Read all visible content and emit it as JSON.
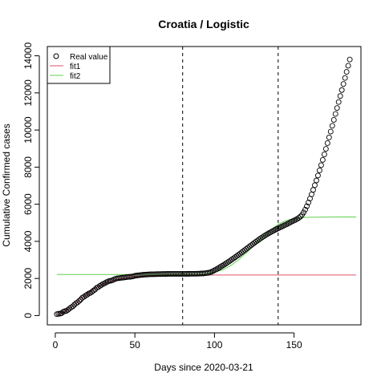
{
  "chart_data": {
    "type": "scatter",
    "title": "Croatia / Logistic",
    "xlabel": "Days since 2020-03-21",
    "ylabel": "Cumulative Confirmed cases",
    "xlim": [
      -5,
      192
    ],
    "ylim": [
      -500,
      14500
    ],
    "xticks": [
      0,
      50,
      100,
      150
    ],
    "yticks": [
      0,
      2000,
      4000,
      6000,
      8000,
      10000,
      12000,
      14000
    ],
    "xtick_labels": [
      "0",
      "50",
      "100",
      "150"
    ],
    "ytick_labels": [
      "0",
      "2000",
      "4000",
      "6000",
      "8000",
      "10000",
      "12000",
      "14000"
    ],
    "vlines": [
      80,
      140
    ],
    "legend": {
      "position": "top-left",
      "entries": [
        {
          "label": "Real value",
          "symbol": "circle",
          "color": "#000000"
        },
        {
          "label": "fit1",
          "symbol": "line",
          "color": "#DF536B"
        },
        {
          "label": "fit2",
          "symbol": "line",
          "color": "#61D04F"
        }
      ]
    },
    "series": [
      {
        "name": "Real value",
        "kind": "points",
        "color": "#000000",
        "x": [
          1,
          2,
          3,
          4,
          5,
          6,
          7,
          8,
          9,
          10,
          11,
          12,
          13,
          14,
          15,
          16,
          17,
          18,
          19,
          20,
          21,
          22,
          23,
          24,
          25,
          26,
          27,
          28,
          29,
          30,
          31,
          32,
          33,
          34,
          35,
          36,
          37,
          38,
          39,
          40,
          41,
          42,
          43,
          44,
          45,
          46,
          47,
          48,
          49,
          50,
          51,
          52,
          53,
          54,
          55,
          56,
          57,
          58,
          59,
          60,
          61,
          62,
          63,
          64,
          65,
          66,
          67,
          68,
          69,
          70,
          71,
          72,
          73,
          74,
          75,
          76,
          77,
          78,
          79,
          80,
          81,
          82,
          83,
          84,
          85,
          86,
          87,
          88,
          89,
          90,
          91,
          92,
          93,
          94,
          95,
          96,
          97,
          98,
          99,
          100,
          101,
          102,
          103,
          104,
          105,
          106,
          107,
          108,
          109,
          110,
          111,
          112,
          113,
          114,
          115,
          116,
          117,
          118,
          119,
          120,
          121,
          122,
          123,
          124,
          125,
          126,
          127,
          128,
          129,
          130,
          131,
          132,
          133,
          134,
          135,
          136,
          137,
          138,
          139,
          140,
          141,
          142,
          143,
          144,
          145,
          146,
          147,
          148,
          149,
          150,
          151,
          152,
          153,
          154,
          155,
          156,
          157,
          158,
          159,
          160,
          161,
          162,
          163,
          164,
          165,
          166,
          167,
          168,
          169,
          170,
          171,
          172,
          173,
          174,
          175,
          176,
          177,
          178,
          179,
          180,
          181,
          182,
          183,
          184,
          185
        ],
        "y": [
          76,
          95,
          105,
          128,
          206,
          235,
          254,
          315,
          382,
          442,
          495,
          586,
          657,
          713,
          790,
          867,
          963,
          1011,
          1079,
          1126,
          1182,
          1222,
          1282,
          1343,
          1407,
          1495,
          1534,
          1600,
          1650,
          1704,
          1741,
          1791,
          1832,
          1871,
          1881,
          1908,
          1950,
          1981,
          2009,
          2016,
          2030,
          2039,
          2047,
          2062,
          2076,
          2085,
          2088,
          2101,
          2119,
          2146,
          2158,
          2167,
          2176,
          2187,
          2196,
          2205,
          2209,
          2213,
          2221,
          2224,
          2226,
          2228,
          2232,
          2234,
          2237,
          2238,
          2240,
          2241,
          2243,
          2245,
          2246,
          2247,
          2247,
          2247,
          2247,
          2247,
          2247,
          2247,
          2247,
          2248,
          2249,
          2249,
          2250,
          2250,
          2251,
          2251,
          2252,
          2253,
          2256,
          2259,
          2263,
          2267,
          2272,
          2279,
          2289,
          2304,
          2324,
          2356,
          2395,
          2440,
          2487,
          2535,
          2585,
          2636,
          2688,
          2741,
          2796,
          2851,
          2908,
          2966,
          3026,
          3086,
          3147,
          3209,
          3271,
          3334,
          3398,
          3462,
          3527,
          3592,
          3657,
          3722,
          3787,
          3852,
          3916,
          3979,
          4041,
          4102,
          4161,
          4219,
          4275,
          4330,
          4383,
          4433,
          4481,
          4528,
          4573,
          4617,
          4660,
          4702,
          4743,
          4784,
          4825,
          4866,
          4907,
          4950,
          4994,
          5039,
          5082,
          5124,
          5166,
          5213,
          5266,
          5335,
          5431,
          5557,
          5712,
          5892,
          6092,
          6307,
          6534,
          6773,
          7023,
          7281,
          7548,
          7823,
          8105,
          8393,
          8687,
          8987,
          9292,
          9601,
          9913,
          10228,
          10546,
          10865,
          11186,
          11508,
          11831,
          12155,
          12480,
          12806,
          13134,
          13465,
          13800
        ]
      },
      {
        "name": "fit1",
        "kind": "line",
        "color": "#DF536B",
        "x": [
          1,
          5,
          10,
          15,
          20,
          25,
          30,
          35,
          40,
          45,
          50,
          55,
          60,
          65,
          70,
          75,
          80,
          90,
          100,
          120,
          140,
          160,
          180,
          189
        ],
        "y": [
          55,
          170,
          450,
          830,
          1190,
          1480,
          1700,
          1870,
          1980,
          2060,
          2110,
          2140,
          2160,
          2170,
          2175,
          2178,
          2180,
          2182,
          2183,
          2183,
          2183,
          2183,
          2183,
          2183
        ]
      },
      {
        "name": "fit2",
        "kind": "line",
        "color": "#61D04F",
        "x": [
          1,
          20,
          40,
          60,
          80,
          90,
          95,
          100,
          105,
          110,
          115,
          120,
          125,
          130,
          135,
          140,
          145,
          150,
          155,
          160,
          170,
          180,
          189
        ],
        "y": [
          2210,
          2212,
          2214,
          2216,
          2222,
          2235,
          2260,
          2330,
          2460,
          2680,
          2990,
          3380,
          3800,
          4220,
          4600,
          4920,
          5120,
          5230,
          5280,
          5300,
          5310,
          5312,
          5312
        ]
      }
    ]
  }
}
